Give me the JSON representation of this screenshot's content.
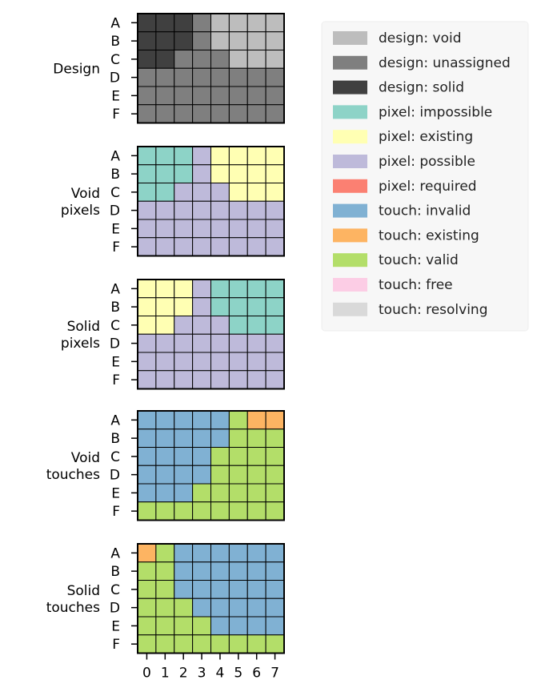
{
  "chart_data": [
    {
      "type": "heatmap",
      "title": "Design",
      "x": [
        "0",
        "1",
        "2",
        "3",
        "4",
        "5",
        "6",
        "7"
      ],
      "y": [
        "A",
        "B",
        "C",
        "D",
        "E",
        "F"
      ],
      "grid": [
        [
          "solid",
          "solid",
          "solid",
          "unassigned",
          "void",
          "void",
          "void",
          "void"
        ],
        [
          "solid",
          "solid",
          "solid",
          "unassigned",
          "void",
          "void",
          "void",
          "void"
        ],
        [
          "solid",
          "solid",
          "unassigned",
          "unassigned",
          "unassigned",
          "void",
          "void",
          "void"
        ],
        [
          "unassigned",
          "unassigned",
          "unassigned",
          "unassigned",
          "unassigned",
          "unassigned",
          "unassigned",
          "unassigned"
        ],
        [
          "unassigned",
          "unassigned",
          "unassigned",
          "unassigned",
          "unassigned",
          "unassigned",
          "unassigned",
          "unassigned"
        ],
        [
          "unassigned",
          "unassigned",
          "unassigned",
          "unassigned",
          "unassigned",
          "unassigned",
          "unassigned",
          "unassigned"
        ]
      ]
    },
    {
      "type": "heatmap",
      "title": "Void pixels",
      "x": [
        "0",
        "1",
        "2",
        "3",
        "4",
        "5",
        "6",
        "7"
      ],
      "y": [
        "A",
        "B",
        "C",
        "D",
        "E",
        "F"
      ],
      "grid": [
        [
          "impossible",
          "impossible",
          "impossible",
          "possible",
          "existing",
          "existing",
          "existing",
          "existing"
        ],
        [
          "impossible",
          "impossible",
          "impossible",
          "possible",
          "existing",
          "existing",
          "existing",
          "existing"
        ],
        [
          "impossible",
          "impossible",
          "possible",
          "possible",
          "possible",
          "existing",
          "existing",
          "existing"
        ],
        [
          "possible",
          "possible",
          "possible",
          "possible",
          "possible",
          "possible",
          "possible",
          "possible"
        ],
        [
          "possible",
          "possible",
          "possible",
          "possible",
          "possible",
          "possible",
          "possible",
          "possible"
        ],
        [
          "possible",
          "possible",
          "possible",
          "possible",
          "possible",
          "possible",
          "possible",
          "possible"
        ]
      ]
    },
    {
      "type": "heatmap",
      "title": "Solid pixels",
      "x": [
        "0",
        "1",
        "2",
        "3",
        "4",
        "5",
        "6",
        "7"
      ],
      "y": [
        "A",
        "B",
        "C",
        "D",
        "E",
        "F"
      ],
      "grid": [
        [
          "existing",
          "existing",
          "existing",
          "possible",
          "impossible",
          "impossible",
          "impossible",
          "impossible"
        ],
        [
          "existing",
          "existing",
          "existing",
          "possible",
          "impossible",
          "impossible",
          "impossible",
          "impossible"
        ],
        [
          "existing",
          "existing",
          "possible",
          "possible",
          "possible",
          "impossible",
          "impossible",
          "impossible"
        ],
        [
          "possible",
          "possible",
          "possible",
          "possible",
          "possible",
          "possible",
          "possible",
          "possible"
        ],
        [
          "possible",
          "possible",
          "possible",
          "possible",
          "possible",
          "possible",
          "possible",
          "possible"
        ],
        [
          "possible",
          "possible",
          "possible",
          "possible",
          "possible",
          "possible",
          "possible",
          "possible"
        ]
      ]
    },
    {
      "type": "heatmap",
      "title": "Void touches",
      "x": [
        "0",
        "1",
        "2",
        "3",
        "4",
        "5",
        "6",
        "7"
      ],
      "y": [
        "A",
        "B",
        "C",
        "D",
        "E",
        "F"
      ],
      "grid": [
        [
          "invalid",
          "invalid",
          "invalid",
          "invalid",
          "invalid",
          "valid",
          "existing",
          "existing"
        ],
        [
          "invalid",
          "invalid",
          "invalid",
          "invalid",
          "invalid",
          "valid",
          "valid",
          "valid"
        ],
        [
          "invalid",
          "invalid",
          "invalid",
          "invalid",
          "valid",
          "valid",
          "valid",
          "valid"
        ],
        [
          "invalid",
          "invalid",
          "invalid",
          "invalid",
          "valid",
          "valid",
          "valid",
          "valid"
        ],
        [
          "invalid",
          "invalid",
          "invalid",
          "valid",
          "valid",
          "valid",
          "valid",
          "valid"
        ],
        [
          "valid",
          "valid",
          "valid",
          "valid",
          "valid",
          "valid",
          "valid",
          "valid"
        ]
      ]
    },
    {
      "type": "heatmap",
      "title": "Solid touches",
      "x": [
        "0",
        "1",
        "2",
        "3",
        "4",
        "5",
        "6",
        "7"
      ],
      "y": [
        "A",
        "B",
        "C",
        "D",
        "E",
        "F"
      ],
      "grid": [
        [
          "existing",
          "valid",
          "invalid",
          "invalid",
          "invalid",
          "invalid",
          "invalid",
          "invalid"
        ],
        [
          "valid",
          "valid",
          "invalid",
          "invalid",
          "invalid",
          "invalid",
          "invalid",
          "invalid"
        ],
        [
          "valid",
          "valid",
          "invalid",
          "invalid",
          "invalid",
          "invalid",
          "invalid",
          "invalid"
        ],
        [
          "valid",
          "valid",
          "valid",
          "invalid",
          "invalid",
          "invalid",
          "invalid",
          "invalid"
        ],
        [
          "valid",
          "valid",
          "valid",
          "valid",
          "invalid",
          "invalid",
          "invalid",
          "invalid"
        ],
        [
          "valid",
          "valid",
          "valid",
          "valid",
          "valid",
          "valid",
          "valid",
          "valid"
        ]
      ]
    }
  ],
  "panel_labels": [
    [
      "Design"
    ],
    [
      "Void",
      "pixels"
    ],
    [
      "Solid",
      "pixels"
    ],
    [
      "Void",
      "touches"
    ],
    [
      "Solid",
      "touches"
    ]
  ],
  "panel_palettes": [
    "design",
    "pixel",
    "pixel",
    "touch",
    "touch"
  ],
  "legend": {
    "placement": "right",
    "items": [
      {
        "label": "design: void",
        "color": "#bdbdbd"
      },
      {
        "label": "design: unassigned",
        "color": "#7f7f7f"
      },
      {
        "label": "design: solid",
        "color": "#404040"
      },
      {
        "label": "pixel: impossible",
        "color": "#8dd3c7"
      },
      {
        "label": "pixel: existing",
        "color": "#ffffb3"
      },
      {
        "label": "pixel: possible",
        "color": "#bebada"
      },
      {
        "label": "pixel: required",
        "color": "#fb8072"
      },
      {
        "label": "touch: invalid",
        "color": "#80b1d3"
      },
      {
        "label": "touch: existing",
        "color": "#fdb462"
      },
      {
        "label": "touch: valid",
        "color": "#b3de69"
      },
      {
        "label": "touch: free",
        "color": "#fccde5"
      },
      {
        "label": "touch: resolving",
        "color": "#d9d9d9"
      }
    ]
  },
  "colors": {
    "design": {
      "void": "#bdbdbd",
      "unassigned": "#7f7f7f",
      "solid": "#404040"
    },
    "pixel": {
      "impossible": "#8dd3c7",
      "existing": "#ffffb3",
      "possible": "#bebada",
      "required": "#fb8072"
    },
    "touch": {
      "invalid": "#80b1d3",
      "existing": "#fdb462",
      "valid": "#b3de69",
      "free": "#fccde5",
      "resolving": "#d9d9d9"
    }
  }
}
